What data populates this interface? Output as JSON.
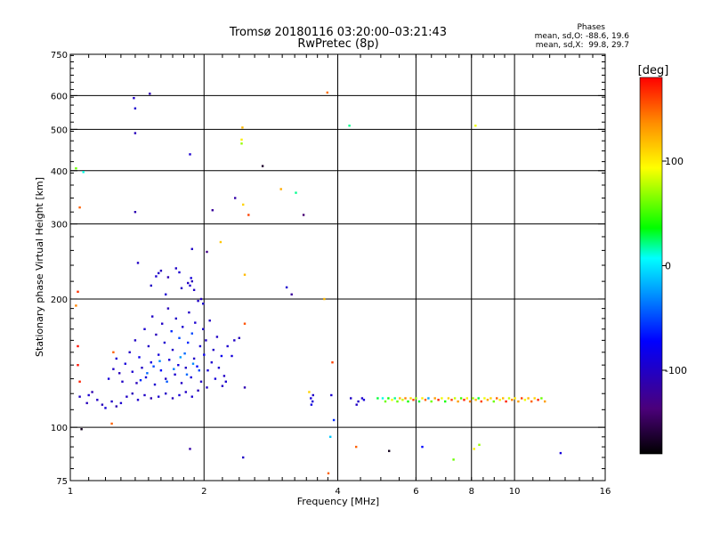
{
  "chart_data": {
    "type": "scatter",
    "title": "Tromsø 20180116 03:20:00–03:21:43",
    "subtitle": "RwPretec (8p)",
    "xlabel": "Frequency [MHz]",
    "ylabel": "Stationary phase Virtual Height [km]",
    "x_scale": "log",
    "y_scale": "log",
    "xlim": [
      1,
      16
    ],
    "ylim": [
      75,
      750
    ],
    "x_ticks": [
      1,
      2,
      4,
      6,
      8,
      10,
      16
    ],
    "x_tick_labels": [
      "1",
      "2",
      "4",
      "6",
      "8",
      "10",
      "16"
    ],
    "x_grid_lines": [
      2,
      4,
      6,
      8,
      10
    ],
    "y_ticks": [
      75,
      100,
      200,
      300,
      400,
      500,
      600,
      750
    ],
    "y_tick_labels": [
      "75",
      "100",
      "200",
      "300",
      "400",
      "500",
      "600",
      "750"
    ],
    "y_grid_lines": [
      100,
      200,
      300,
      400,
      500,
      600
    ],
    "stats": {
      "heading": "Phases",
      "line_o": "mean, sd,O: -88.6, 19.6",
      "line_x": "mean, sd,X:  99.8, 29.7"
    },
    "colorbar": {
      "label": "[deg]",
      "range": [
        -180,
        180
      ],
      "ticks": [
        -100,
        0,
        100
      ],
      "tick_labels": [
        "-100",
        "0",
        "100"
      ]
    },
    "points": [
      [
        1.39,
        592,
        -100
      ],
      [
        1.51,
        606,
        -110
      ],
      [
        1.4,
        560,
        -95
      ],
      [
        1.4,
        490,
        -105
      ],
      [
        1.86,
        437,
        -95
      ],
      [
        1.07,
        397,
        10
      ],
      [
        1.03,
        405,
        60
      ],
      [
        1.05,
        328,
        150
      ],
      [
        1.4,
        320,
        -110
      ],
      [
        2.09,
        323,
        -120
      ],
      [
        2.35,
        345,
        -115
      ],
      [
        2.71,
        410,
        -165
      ],
      [
        2.44,
        505,
        120
      ],
      [
        2.43,
        473,
        100
      ],
      [
        2.43,
        463,
        70
      ],
      [
        2.45,
        333,
        110
      ],
      [
        2.52,
        315,
        160
      ],
      [
        3.22,
        355,
        20
      ],
      [
        2.98,
        362,
        125
      ],
      [
        3.35,
        315,
        -140
      ],
      [
        3.79,
        610,
        145
      ],
      [
        4.25,
        510,
        20
      ],
      [
        8.17,
        510,
        90
      ],
      [
        2.18,
        272,
        115
      ],
      [
        2.03,
        258,
        -130
      ],
      [
        1.88,
        262,
        -100
      ],
      [
        1.04,
        208,
        165
      ],
      [
        1.03,
        193,
        140
      ],
      [
        2.47,
        228,
        120
      ],
      [
        3.07,
        213,
        -95
      ],
      [
        3.15,
        205,
        -120
      ],
      [
        3.73,
        200,
        120
      ],
      [
        2.47,
        175,
        155
      ],
      [
        3.89,
        142,
        160
      ],
      [
        1.04,
        155,
        175
      ],
      [
        1.04,
        140,
        175
      ],
      [
        1.05,
        128,
        170
      ],
      [
        1.06,
        99,
        -170
      ],
      [
        1.24,
        102,
        150
      ],
      [
        1.25,
        150,
        150
      ],
      [
        3.45,
        121,
        110
      ],
      [
        3.92,
        104,
        -60
      ],
      [
        3.85,
        95,
        -10
      ],
      [
        3.81,
        78,
        150
      ],
      [
        4.4,
        90,
        150
      ],
      [
        5.22,
        88,
        -170
      ],
      [
        6.2,
        90,
        -70
      ],
      [
        7.29,
        84,
        60
      ],
      [
        8.11,
        89,
        100
      ],
      [
        8.33,
        91,
        70
      ],
      [
        12.7,
        87,
        -90
      ],
      [
        1.86,
        89,
        -115
      ],
      [
        2.45,
        85,
        -100
      ],
      [
        1.05,
        118,
        -100
      ],
      [
        1.09,
        114,
        -105
      ],
      [
        1.1,
        119,
        -95
      ],
      [
        1.12,
        121,
        -110
      ],
      [
        1.15,
        116,
        -100
      ],
      [
        1.18,
        113,
        -105
      ],
      [
        1.2,
        111,
        -90
      ],
      [
        1.24,
        115,
        -100
      ],
      [
        1.27,
        112,
        -110
      ],
      [
        1.3,
        114,
        -95
      ],
      [
        1.34,
        118,
        -100
      ],
      [
        1.38,
        120,
        -105
      ],
      [
        1.42,
        116,
        -95
      ],
      [
        1.47,
        119,
        -100
      ],
      [
        1.52,
        117,
        -110
      ],
      [
        1.58,
        118,
        -95
      ],
      [
        1.64,
        120,
        -100
      ],
      [
        1.7,
        117,
        -105
      ],
      [
        1.76,
        119,
        -90
      ],
      [
        1.82,
        121,
        -100
      ],
      [
        1.88,
        118,
        -95
      ],
      [
        1.94,
        122,
        -105
      ],
      [
        1.22,
        130,
        -90
      ],
      [
        1.25,
        137,
        -100
      ],
      [
        1.27,
        145,
        -95
      ],
      [
        1.29,
        134,
        -105
      ],
      [
        1.31,
        128,
        -100
      ],
      [
        1.33,
        141,
        -90
      ],
      [
        1.36,
        150,
        -100
      ],
      [
        1.38,
        135,
        -95
      ],
      [
        1.4,
        160,
        -100
      ],
      [
        1.41,
        127,
        -105
      ],
      [
        1.43,
        146,
        -80
      ],
      [
        1.45,
        138,
        -100
      ],
      [
        1.47,
        170,
        -95
      ],
      [
        1.48,
        131,
        -90
      ],
      [
        1.5,
        155,
        -100
      ],
      [
        1.52,
        142,
        -85
      ],
      [
        1.53,
        182,
        -100
      ],
      [
        1.55,
        126,
        -95
      ],
      [
        1.56,
        165,
        -105
      ],
      [
        1.58,
        148,
        -90
      ],
      [
        1.6,
        136,
        -70
      ],
      [
        1.61,
        175,
        -100
      ],
      [
        1.63,
        158,
        -95
      ],
      [
        1.64,
        130,
        -100
      ],
      [
        1.66,
        190,
        -105
      ],
      [
        1.67,
        144,
        -90
      ],
      [
        1.69,
        168,
        -60
      ],
      [
        1.7,
        152,
        -100
      ],
      [
        1.72,
        133,
        -95
      ],
      [
        1.73,
        180,
        -100
      ],
      [
        1.75,
        140,
        -90
      ],
      [
        1.76,
        162,
        -50
      ],
      [
        1.78,
        127,
        -100
      ],
      [
        1.79,
        172,
        -95
      ],
      [
        1.81,
        149,
        -40
      ],
      [
        1.82,
        138,
        -100
      ],
      [
        1.84,
        158,
        -60
      ],
      [
        1.85,
        186,
        -100
      ],
      [
        1.87,
        131,
        -90
      ],
      [
        1.88,
        166,
        -50
      ],
      [
        1.9,
        145,
        -100
      ],
      [
        1.91,
        176,
        -95
      ],
      [
        1.93,
        139,
        -70
      ],
      [
        1.94,
        198,
        -100
      ],
      [
        1.96,
        155,
        -90
      ],
      [
        1.97,
        128,
        -100
      ],
      [
        1.99,
        170,
        -95
      ],
      [
        2.0,
        148,
        -80
      ],
      [
        2.02,
        160,
        -100
      ],
      [
        2.04,
        136,
        -90
      ],
      [
        2.06,
        178,
        -100
      ],
      [
        2.08,
        142,
        -95
      ],
      [
        2.1,
        152,
        -100
      ],
      [
        2.12,
        130,
        -90
      ],
      [
        2.14,
        163,
        -100
      ],
      [
        2.16,
        138,
        -95
      ],
      [
        2.19,
        147,
        -80
      ],
      [
        2.22,
        132,
        -100
      ],
      [
        1.44,
        129,
        -60
      ],
      [
        1.49,
        134,
        -40
      ],
      [
        1.54,
        139,
        -50
      ],
      [
        1.59,
        143,
        -30
      ],
      [
        1.65,
        128,
        -45
      ],
      [
        1.71,
        137,
        -35
      ],
      [
        1.77,
        146,
        -25
      ],
      [
        1.83,
        133,
        -40
      ],
      [
        1.89,
        141,
        -30
      ],
      [
        1.95,
        136,
        -50
      ],
      [
        1.86,
        215,
        -95
      ],
      [
        1.88,
        220,
        -105
      ],
      [
        1.9,
        210,
        -100
      ],
      [
        1.87,
        224,
        -90
      ],
      [
        1.84,
        218,
        -100
      ],
      [
        1.58,
        230,
        -100
      ],
      [
        1.6,
        233,
        -105
      ],
      [
        1.56,
        226,
        -95
      ],
      [
        1.73,
        236,
        -100
      ],
      [
        1.76,
        231,
        -95
      ],
      [
        1.66,
        225,
        -110
      ],
      [
        1.52,
        215,
        -100
      ],
      [
        1.64,
        205,
        -95
      ],
      [
        1.78,
        212,
        -100
      ],
      [
        1.99,
        195,
        -95
      ],
      [
        1.97,
        200,
        -105
      ],
      [
        1.42,
        243,
        -100
      ],
      [
        2.34,
        160,
        -100
      ],
      [
        2.4,
        162,
        -105
      ],
      [
        2.26,
        155,
        -95
      ],
      [
        2.31,
        147,
        -90
      ],
      [
        2.2,
        125,
        -100
      ],
      [
        2.24,
        128,
        -95
      ],
      [
        2.03,
        124,
        -100
      ],
      [
        2.47,
        124,
        -110
      ],
      [
        3.48,
        117,
        -90
      ],
      [
        3.51,
        115,
        -95
      ],
      [
        3.52,
        119,
        -100
      ],
      [
        3.49,
        113,
        -85
      ],
      [
        3.87,
        119,
        -95
      ],
      [
        4.28,
        117,
        -100
      ],
      [
        4.54,
        117,
        -95
      ],
      [
        4.45,
        115,
        -100
      ],
      [
        4.58,
        116,
        -90
      ],
      [
        4.41,
        113,
        -100
      ],
      [
        4.92,
        117,
        30
      ],
      [
        5.05,
        117,
        10
      ],
      [
        5.12,
        115,
        60
      ],
      [
        5.2,
        117,
        40
      ],
      [
        5.3,
        116,
        90
      ],
      [
        5.38,
        117,
        20
      ],
      [
        5.45,
        115,
        60
      ],
      [
        5.52,
        117,
        120
      ],
      [
        5.6,
        116,
        80
      ],
      [
        5.68,
        117,
        140
      ],
      [
        5.76,
        115,
        40
      ],
      [
        5.84,
        117,
        110
      ],
      [
        5.92,
        116,
        160
      ],
      [
        6.0,
        117,
        70
      ],
      [
        6.1,
        115,
        30
      ],
      [
        6.2,
        117,
        100
      ],
      [
        6.3,
        116,
        150
      ],
      [
        6.4,
        117,
        -20
      ],
      [
        6.5,
        115,
        60
      ],
      [
        6.62,
        117,
        130
      ],
      [
        6.74,
        116,
        170
      ],
      [
        6.86,
        117,
        90
      ],
      [
        6.98,
        115,
        40
      ],
      [
        7.1,
        117,
        110
      ],
      [
        7.22,
        116,
        160
      ],
      [
        7.34,
        117,
        80
      ],
      [
        7.46,
        115,
        130
      ],
      [
        7.58,
        117,
        50
      ],
      [
        7.7,
        116,
        170
      ],
      [
        7.82,
        117,
        100
      ],
      [
        7.94,
        115,
        140
      ],
      [
        8.06,
        117,
        70
      ],
      [
        8.18,
        116,
        120
      ],
      [
        8.3,
        117,
        30
      ],
      [
        8.42,
        115,
        160
      ],
      [
        8.56,
        117,
        90
      ],
      [
        8.7,
        116,
        130
      ],
      [
        8.84,
        117,
        110
      ],
      [
        8.98,
        115,
        60
      ],
      [
        9.12,
        117,
        150
      ],
      [
        9.27,
        116,
        100
      ],
      [
        9.42,
        117,
        120
      ],
      [
        9.57,
        115,
        170
      ],
      [
        9.72,
        117,
        80
      ],
      [
        9.87,
        116,
        140
      ],
      [
        10.02,
        117,
        100
      ],
      [
        10.2,
        115,
        130
      ],
      [
        10.38,
        117,
        160
      ],
      [
        10.56,
        116,
        90
      ],
      [
        10.74,
        117,
        120
      ],
      [
        10.92,
        115,
        150
      ],
      [
        11.1,
        117,
        110
      ],
      [
        11.3,
        116,
        170
      ],
      [
        11.5,
        117,
        60
      ],
      [
        11.7,
        115,
        130
      ]
    ]
  }
}
